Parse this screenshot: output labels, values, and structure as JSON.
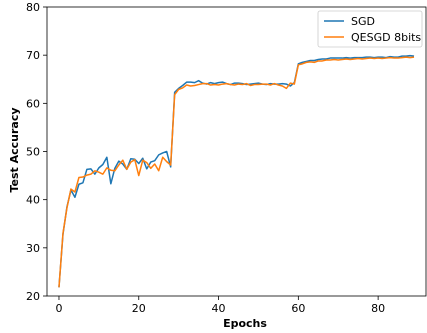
{
  "chart_data": {
    "type": "line",
    "xlabel": "Epochs",
    "ylabel": "Test Accuracy",
    "xlim": [
      -3,
      92
    ],
    "ylim": [
      20,
      80
    ],
    "xticks": [
      0,
      20,
      40,
      60,
      80
    ],
    "yticks": [
      20,
      30,
      40,
      50,
      60,
      70,
      80
    ],
    "grid": false,
    "legend_position": "top-right",
    "x": [
      0,
      1,
      2,
      3,
      4,
      5,
      6,
      7,
      8,
      9,
      10,
      11,
      12,
      13,
      14,
      15,
      16,
      17,
      18,
      19,
      20,
      21,
      22,
      23,
      24,
      25,
      26,
      27,
      28,
      29,
      30,
      31,
      32,
      33,
      34,
      35,
      36,
      37,
      38,
      39,
      40,
      41,
      42,
      43,
      44,
      45,
      46,
      47,
      48,
      49,
      50,
      51,
      52,
      53,
      54,
      55,
      56,
      57,
      58,
      59,
      60,
      61,
      62,
      63,
      64,
      65,
      66,
      67,
      68,
      69,
      70,
      71,
      72,
      73,
      74,
      75,
      76,
      77,
      78,
      79,
      80,
      81,
      82,
      83,
      84,
      85,
      86,
      87,
      88,
      89
    ],
    "series": [
      {
        "name": "SGD",
        "color": "#1f77b4",
        "values": [
          21.8,
          32.8,
          38.5,
          42.0,
          40.5,
          43.2,
          43.5,
          46.3,
          46.4,
          45.3,
          46.6,
          47.3,
          48.8,
          43.3,
          46.5,
          48.0,
          47.4,
          46.3,
          48.5,
          48.4,
          47.5,
          48.6,
          46.4,
          47.8,
          48.1,
          49.3,
          49.7,
          50.0,
          46.8,
          62.3,
          63.1,
          63.7,
          64.4,
          64.4,
          64.3,
          64.7,
          64.2,
          64.0,
          64.3,
          64.1,
          64.3,
          64.4,
          64.1,
          63.9,
          64.2,
          64.2,
          64.1,
          63.9,
          64.0,
          64.1,
          64.2,
          64.0,
          63.9,
          64.1,
          64.0,
          64.0,
          64.1,
          64.0,
          63.6,
          64.3,
          68.2,
          68.5,
          68.7,
          68.9,
          68.9,
          69.1,
          69.2,
          69.2,
          69.4,
          69.4,
          69.4,
          69.4,
          69.5,
          69.4,
          69.5,
          69.5,
          69.5,
          69.6,
          69.6,
          69.5,
          69.6,
          69.6,
          69.5,
          69.7,
          69.6,
          69.6,
          69.8,
          69.8,
          69.9,
          69.8
        ]
      },
      {
        "name": "QESGD 8bits",
        "color": "#ff7f0e",
        "values": [
          21.8,
          33.0,
          38.3,
          42.2,
          41.6,
          44.6,
          44.7,
          45.1,
          45.3,
          46.0,
          45.7,
          45.3,
          46.6,
          46.1,
          46.0,
          47.2,
          48.2,
          46.3,
          47.8,
          48.3,
          45.0,
          48.2,
          47.7,
          46.5,
          47.4,
          46.0,
          48.8,
          47.9,
          47.2,
          61.8,
          62.9,
          63.2,
          63.8,
          63.6,
          63.7,
          63.9,
          64.1,
          64.1,
          63.8,
          63.9,
          63.8,
          64.0,
          64.1,
          63.9,
          63.8,
          64.0,
          63.9,
          64.1,
          63.7,
          63.9,
          63.9,
          64.0,
          64.0,
          63.8,
          64.1,
          63.8,
          63.6,
          63.1,
          64.2,
          64.0,
          68.0,
          68.2,
          68.5,
          68.6,
          68.5,
          68.8,
          68.8,
          69.0,
          69.0,
          69.1,
          69.0,
          69.1,
          69.2,
          69.1,
          69.2,
          69.3,
          69.2,
          69.3,
          69.4,
          69.3,
          69.4,
          69.3,
          69.4,
          69.5,
          69.4,
          69.4,
          69.5,
          69.6,
          69.5,
          69.6
        ]
      }
    ]
  }
}
